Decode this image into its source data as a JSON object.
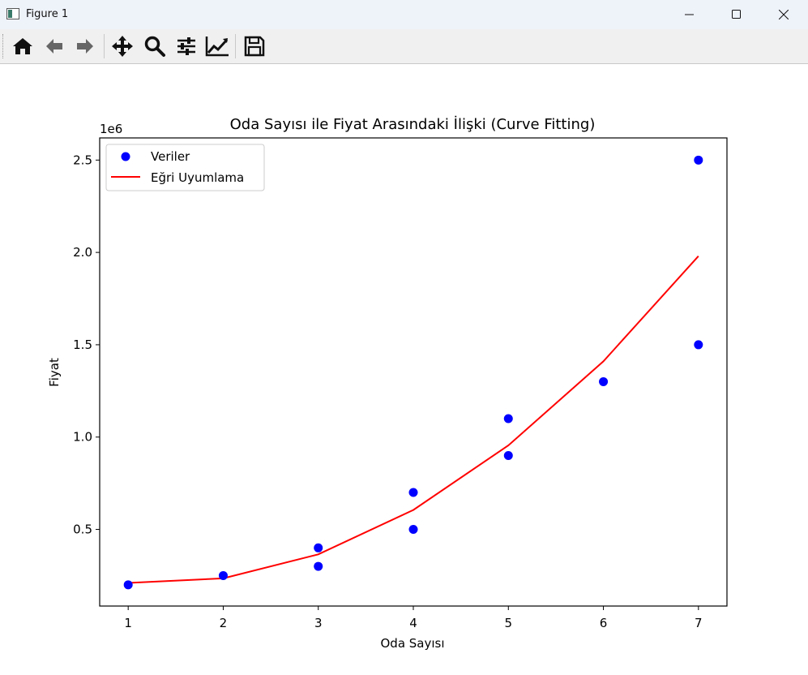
{
  "window": {
    "title": "Figure 1",
    "controls": [
      "minimize",
      "maximize",
      "close"
    ]
  },
  "toolbar": {
    "buttons": [
      {
        "name": "home",
        "icon": "home-icon"
      },
      {
        "name": "back",
        "icon": "arrow-left-icon"
      },
      {
        "name": "forward",
        "icon": "arrow-right-icon"
      },
      {
        "name": "pan",
        "icon": "move-icon"
      },
      {
        "name": "zoom",
        "icon": "magnifier-icon"
      },
      {
        "name": "subplots",
        "icon": "sliders-icon"
      },
      {
        "name": "customize",
        "icon": "line-chart-icon"
      },
      {
        "name": "save",
        "icon": "floppy-icon"
      }
    ]
  },
  "chart_data": {
    "type": "scatter",
    "title": "Oda Sayısı ile Fiyat Arasındaki İlişki (Curve Fitting)",
    "xlabel": "Oda Sayısı",
    "ylabel": "Fiyat",
    "y_offset_label": "1e6",
    "xlim": [
      0.7,
      7.3
    ],
    "ylim": [
      0.085,
      2.62
    ],
    "xticks": [
      1,
      2,
      3,
      4,
      5,
      6,
      7
    ],
    "xtick_labels": [
      "1",
      "2",
      "3",
      "4",
      "5",
      "6",
      "7"
    ],
    "yticks": [
      0.5,
      1.0,
      1.5,
      2.0,
      2.5
    ],
    "ytick_labels": [
      "0.5",
      "1.0",
      "1.5",
      "2.0",
      "2.5"
    ],
    "grid": false,
    "legend_position": "top-left",
    "series": [
      {
        "name": "Veriler",
        "kind": "scatter",
        "color": "#0000ff",
        "x": [
          1,
          2,
          3,
          3,
          4,
          4,
          5,
          5,
          6,
          7,
          7
        ],
        "y": [
          0.2,
          0.25,
          0.3,
          0.4,
          0.5,
          0.7,
          0.9,
          1.1,
          1.3,
          1.5,
          2.5
        ]
      },
      {
        "name": "Eğri Uyumlama",
        "kind": "line",
        "color": "#ff0000",
        "x": [
          1,
          2,
          3,
          4,
          5,
          6,
          7
        ],
        "y": [
          0.21,
          0.235,
          0.365,
          0.605,
          0.955,
          1.41,
          1.98
        ]
      }
    ]
  }
}
